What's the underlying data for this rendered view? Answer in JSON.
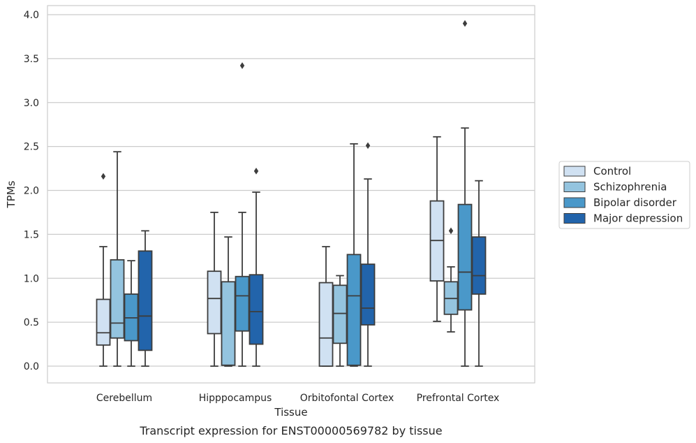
{
  "chart_data": {
    "type": "boxplot",
    "xlabel": "Tissue",
    "ylabel": "TPMs",
    "caption": "Transcript expression for ENST00000569782 by tissue",
    "ylim": [
      -0.19,
      4.1
    ],
    "yticks": [
      0.0,
      0.5,
      1.0,
      1.5,
      2.0,
      2.5,
      3.0,
      3.5,
      4.0
    ],
    "grid": true,
    "legend_position": "right",
    "categories": [
      "Cerebellum",
      "Hipppocampus",
      "Orbitofontal Cortex",
      "Prefrontal Cortex"
    ],
    "series": [
      {
        "name": "Control",
        "color": "#d0e1f2",
        "boxes": [
          {
            "whislo": 0.0,
            "q1": 0.24,
            "med": 0.38,
            "q3": 0.76,
            "whishi": 1.36,
            "fliers": [
              2.16
            ]
          },
          {
            "whislo": 0.0,
            "q1": 0.37,
            "med": 0.77,
            "q3": 1.08,
            "whishi": 1.75,
            "fliers": []
          },
          {
            "whislo": 0.0,
            "q1": 0.0,
            "med": 0.32,
            "q3": 0.95,
            "whishi": 1.36,
            "fliers": []
          },
          {
            "whislo": 0.51,
            "q1": 0.97,
            "med": 1.43,
            "q3": 1.88,
            "whishi": 2.61,
            "fliers": []
          }
        ]
      },
      {
        "name": "Schizophrenia",
        "color": "#94c4df",
        "boxes": [
          {
            "whislo": 0.0,
            "q1": 0.32,
            "med": 0.49,
            "q3": 1.21,
            "whishi": 2.44,
            "fliers": []
          },
          {
            "whislo": 0.0,
            "q1": 0.01,
            "med": 0.01,
            "q3": 0.96,
            "whishi": 1.47,
            "fliers": []
          },
          {
            "whislo": 0.0,
            "q1": 0.26,
            "med": 0.6,
            "q3": 0.92,
            "whishi": 1.03,
            "fliers": []
          },
          {
            "whislo": 0.39,
            "q1": 0.59,
            "med": 0.77,
            "q3": 0.96,
            "whishi": 1.13,
            "fliers": [
              1.54
            ]
          }
        ]
      },
      {
        "name": "Bipolar disorder",
        "color": "#4a98c9",
        "boxes": [
          {
            "whislo": 0.0,
            "q1": 0.29,
            "med": 0.55,
            "q3": 0.82,
            "whishi": 1.2,
            "fliers": []
          },
          {
            "whislo": 0.0,
            "q1": 0.4,
            "med": 0.8,
            "q3": 1.02,
            "whishi": 1.75,
            "fliers": [
              3.42
            ]
          },
          {
            "whislo": 0.0,
            "q1": 0.01,
            "med": 0.8,
            "q3": 1.27,
            "whishi": 2.53,
            "fliers": []
          },
          {
            "whislo": 0.0,
            "q1": 0.64,
            "med": 1.07,
            "q3": 1.84,
            "whishi": 2.71,
            "fliers": [
              3.9
            ]
          }
        ]
      },
      {
        "name": "Major depression",
        "color": "#2264ab",
        "boxes": [
          {
            "whislo": 0.0,
            "q1": 0.18,
            "med": 0.57,
            "q3": 1.31,
            "whishi": 1.54,
            "fliers": []
          },
          {
            "whislo": 0.0,
            "q1": 0.25,
            "med": 0.62,
            "q3": 1.04,
            "whishi": 1.98,
            "fliers": [
              2.22
            ]
          },
          {
            "whislo": 0.0,
            "q1": 0.47,
            "med": 0.66,
            "q3": 1.16,
            "whishi": 2.13,
            "fliers": [
              2.51
            ]
          },
          {
            "whislo": 0.0,
            "q1": 0.82,
            "med": 1.03,
            "q3": 1.47,
            "whishi": 2.11,
            "fliers": []
          }
        ]
      }
    ]
  }
}
